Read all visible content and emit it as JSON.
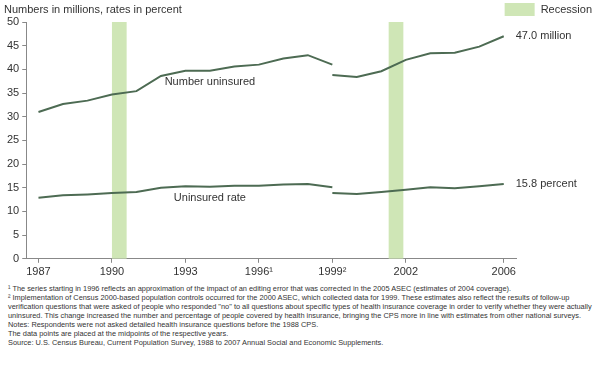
{
  "chart_data": {
    "type": "line",
    "y_label": "Numbers in millions, rates in percent",
    "x": [
      1987,
      1988,
      1989,
      1990,
      1991,
      1992,
      1993,
      1994,
      1995,
      1996,
      1997,
      1998,
      1999,
      1999,
      1999,
      2000,
      2001,
      2002,
      2003,
      2004,
      2005,
      2006
    ],
    "series": [
      {
        "name": "Number uninsured",
        "color": "#4d6b53",
        "values": [
          31.0,
          32.7,
          33.4,
          34.7,
          35.4,
          38.6,
          39.7,
          39.7,
          40.6,
          41.0,
          42.3,
          43.0,
          41.0,
          null,
          38.8,
          38.4,
          39.6,
          42.0,
          43.4,
          43.5,
          44.8,
          47.0
        ],
        "value_labels": [
          null,
          null,
          null,
          null,
          null,
          null,
          null,
          null,
          null,
          null,
          null,
          null,
          null,
          null,
          null,
          null,
          null,
          null,
          null,
          null,
          null,
          "47.0 million"
        ]
      },
      {
        "name": "Uninsured rate",
        "color": "#4d6b53",
        "values": [
          12.9,
          13.4,
          13.6,
          13.9,
          14.1,
          15.0,
          15.3,
          15.2,
          15.4,
          15.4,
          15.7,
          15.8,
          15.1,
          null,
          13.9,
          13.7,
          14.1,
          14.6,
          15.1,
          14.9,
          15.3,
          15.8
        ],
        "value_labels": [
          null,
          null,
          null,
          null,
          null,
          null,
          null,
          null,
          null,
          null,
          null,
          null,
          null,
          null,
          null,
          null,
          null,
          null,
          null,
          null,
          null,
          "15.8 percent"
        ]
      }
    ],
    "data_labels": true,
    "shaded_ranges": {
      "name": "Recession",
      "color": "#cfe6b6",
      "ranges": [
        [
          1990.0,
          1990.6
        ],
        [
          2001.3,
          2001.9
        ]
      ]
    },
    "legend": "top-right",
    "xlim": [
      1986.5,
      2006.5
    ],
    "xticks": [
      1987,
      1990,
      1993,
      {
        "value": 1996,
        "label": "1996¹"
      },
      {
        "value": 1999,
        "label": "1999²"
      },
      2002,
      2006
    ],
    "ylim": [
      0,
      50
    ],
    "yticks": [
      0,
      5,
      10,
      15,
      20,
      25,
      30,
      35,
      40,
      45,
      50
    ],
    "grid": false,
    "notes": [
      "¹ The series starting in 1996 reflects an approximation of the impact of an editing error that was corrected in the 2005 ASEC (estimates of 2004 coverage).",
      "² Implementation of Census 2000-based population controls occurred for the 2000 ASEC, which collected data for 1999. These estimates also reflect the results of follow-up verification questions that were asked of people who responded \"no\" to all questions about specific types of health insurance coverage in order to verify whether they were actually uninsured. This change increased the number and percentage of people covered by health insurance, bringing the CPS more in line with estimates from other national surveys.",
      "Notes: Respondents were not asked detailed health insurance questions before the 1988 CPS.",
      "The data points are placed at the midpoints of the respective years.",
      "Source: U.S. Census Bureau, Current Population Survey, 1988 to 2007 Annual Social and Economic Supplements."
    ]
  }
}
